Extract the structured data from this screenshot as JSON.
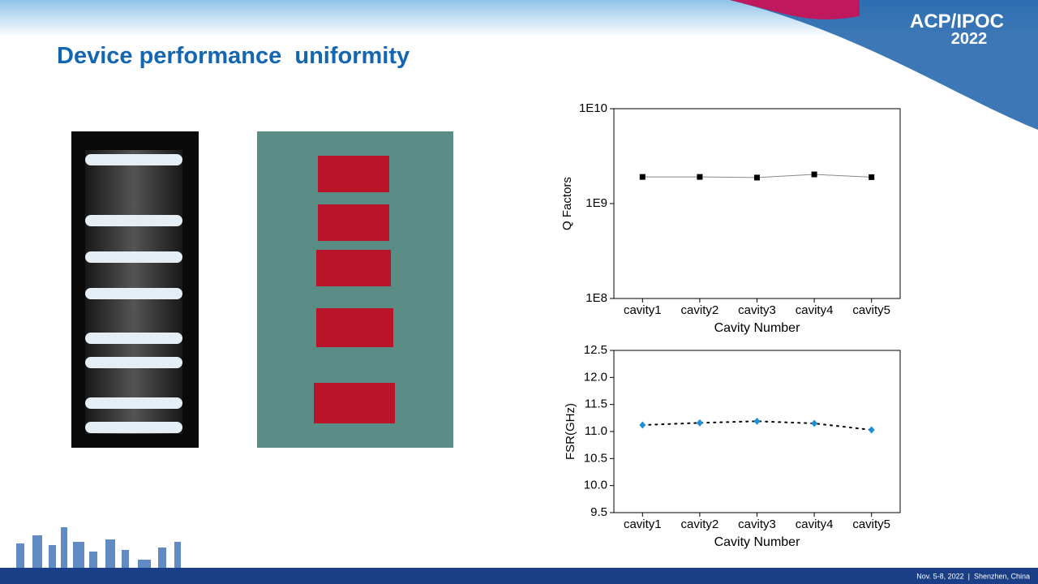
{
  "slide_title": "Device performance  uniformity",
  "logo": {
    "name": "ACP/IPOC",
    "year": "2022"
  },
  "footer": "Nov. 5-8, 2022  |  Shenzhen, China",
  "chart_data": [
    {
      "type": "line",
      "categories": [
        "cavity1",
        "cavity2",
        "cavity3",
        "cavity4",
        "cavity5"
      ],
      "values": [
        1910000000,
        1910000000,
        1880000000,
        2030000000,
        1900000000
      ],
      "color": "#000000",
      "line_color": "#888888",
      "line_style": "solid",
      "marker": "square",
      "log_y": true,
      "ylim": [
        100000000,
        10000000000
      ],
      "yticks": [
        {
          "value": 100000000,
          "label": "1E8"
        },
        {
          "value": 1000000000,
          "label": "1E9"
        },
        {
          "value": 10000000000,
          "label": "1E10"
        }
      ],
      "xlabel": "Cavity Number",
      "ylabel": "Q Factors"
    },
    {
      "type": "line",
      "categories": [
        "cavity1",
        "cavity2",
        "cavity3",
        "cavity4",
        "cavity5"
      ],
      "values": [
        11.12,
        11.16,
        11.19,
        11.15,
        11.03
      ],
      "color": "#1f8fd6",
      "line_color": "#000000",
      "line_style": "dotted",
      "marker": "diamond",
      "log_y": false,
      "ylim": [
        9.5,
        12.5
      ],
      "yticks": [
        9.5,
        {
          "value": 10,
          "label": "10.0"
        },
        10.5,
        {
          "value": 11,
          "label": "11.0"
        },
        11.5,
        {
          "value": 12,
          "label": "12.0"
        },
        12.5
      ],
      "xlabel": "Cavity Number",
      "ylabel": "FSR(GHz)"
    }
  ]
}
